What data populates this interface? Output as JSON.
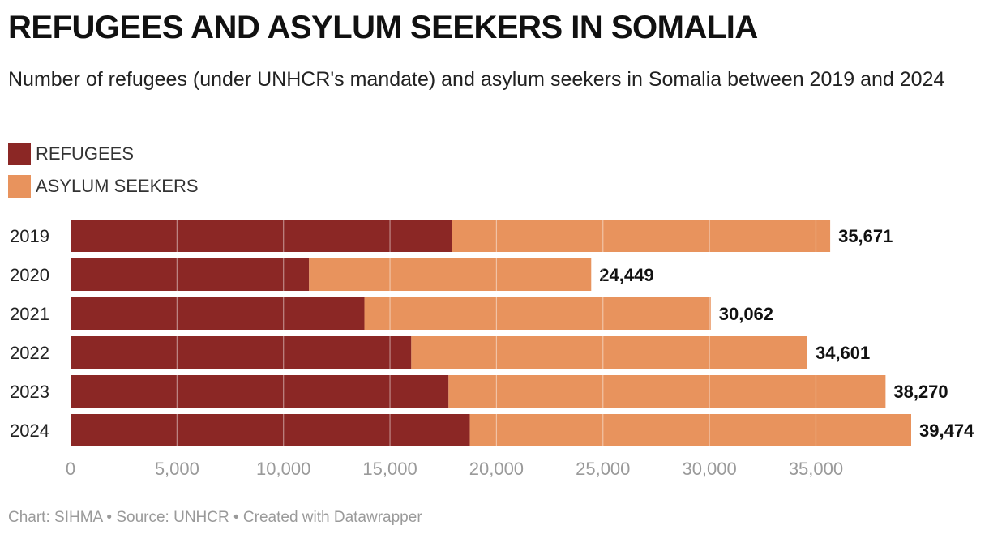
{
  "header": {
    "title": "REFUGEES AND ASYLUM SEEKERS IN SOMALIA",
    "subtitle": "Number of refugees (under UNHCR's mandate) and asylum seekers in Somalia between 2019 and 2024"
  },
  "legend": {
    "items": [
      {
        "label": "REFUGEES",
        "color": "#8b2725"
      },
      {
        "label": "ASYLUM SEEKERS",
        "color": "#e8935d"
      }
    ]
  },
  "footer": {
    "credit": "Chart: SIHMA • Source: UNHCR • Created with Datawrapper"
  },
  "chart_data": {
    "type": "bar",
    "orientation": "horizontal",
    "stacked": true,
    "categories": [
      "2019",
      "2020",
      "2021",
      "2022",
      "2023",
      "2024"
    ],
    "series": [
      {
        "name": "REFUGEES",
        "color": "#8b2725",
        "values": [
          17900,
          11200,
          13800,
          16000,
          17750,
          18750
        ]
      },
      {
        "name": "ASYLUM SEEKERS",
        "color": "#e8935d",
        "values": [
          17771,
          13249,
          16262,
          18601,
          20520,
          20724
        ]
      }
    ],
    "totals": [
      35671,
      24449,
      30062,
      34601,
      38270,
      39474
    ],
    "total_labels": [
      "35,671",
      "24,449",
      "30,062",
      "34,601",
      "38,270",
      "39,474"
    ],
    "xlim": [
      0,
      39474
    ],
    "xticks": [
      0,
      5000,
      10000,
      15000,
      20000,
      25000,
      30000,
      35000
    ],
    "xtick_labels": [
      "0",
      "5,000",
      "10,000",
      "15,000",
      "20,000",
      "25,000",
      "30,000",
      "35,000"
    ],
    "grid": true,
    "legend_position": "top-left"
  }
}
